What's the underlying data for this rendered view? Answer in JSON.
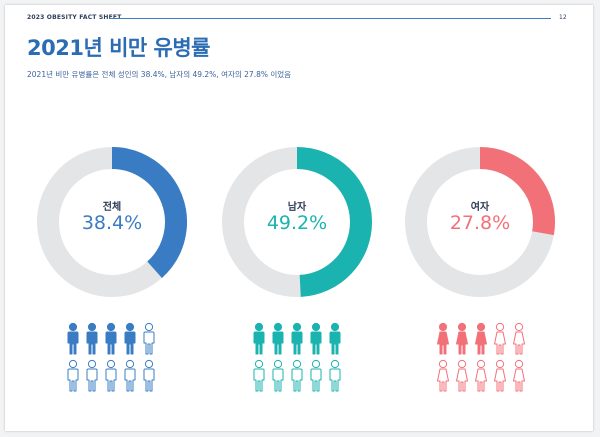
{
  "header": {
    "fact_sheet": "2023 OBESITY FACT SHEET",
    "page_number": "12"
  },
  "title": "2021년 비만 유병률",
  "subtitle": "2021년 비만 유병률은 전체 성인의 38.4%, 남자의 49.2%, 여자의 27.8% 이었음",
  "colors": {
    "total": "#3a7cc3",
    "male": "#1ab3b0",
    "female": "#f27179",
    "track": "#e4e5e7"
  },
  "chart_data": {
    "type": "donut",
    "categories": [
      "전체",
      "남자",
      "여자"
    ],
    "values": [
      38.4,
      49.2,
      27.8
    ],
    "value_labels": [
      "38.4%",
      "49.2%",
      "27.8%"
    ],
    "unit": "%",
    "filled_people_out_of_10": [
      4,
      5,
      3
    ]
  }
}
